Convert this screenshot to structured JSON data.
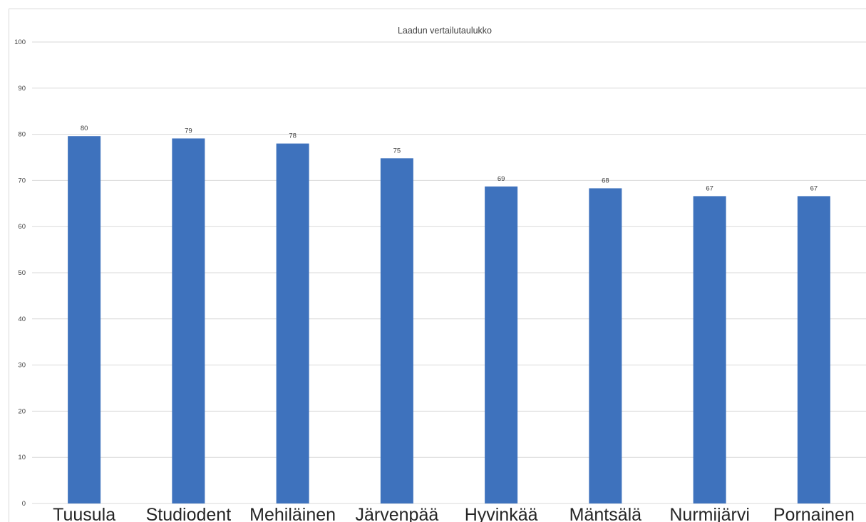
{
  "chart_data": {
    "type": "bar",
    "title": "Laadun vertailutaulukko",
    "xlabel": "",
    "ylabel": "",
    "categories": [
      "Tuusula",
      "Studiodent",
      "Mehiläinen",
      "Järvenpää",
      "Hyvinkää",
      "Mäntsälä",
      "Nurmijärvi",
      "Pornainen"
    ],
    "values": [
      79.6,
      79.1,
      78.0,
      74.8,
      68.7,
      68.3,
      66.6,
      66.6
    ],
    "data_labels": [
      "80",
      "79",
      "78",
      "75",
      "69",
      "68",
      "67",
      "67"
    ],
    "ylim": [
      0,
      100
    ],
    "yticks": [
      0,
      10,
      20,
      30,
      40,
      50,
      60,
      70,
      80,
      90,
      100
    ],
    "ytick_labels": [
      "0",
      "10",
      "20",
      "30",
      "40",
      "50",
      "60",
      "70",
      "80",
      "90",
      "100"
    ],
    "grid": true,
    "legend": "none",
    "bar_color": "#3e72bd",
    "grid_color": "#d9d9d9",
    "text_color": "#404040"
  }
}
